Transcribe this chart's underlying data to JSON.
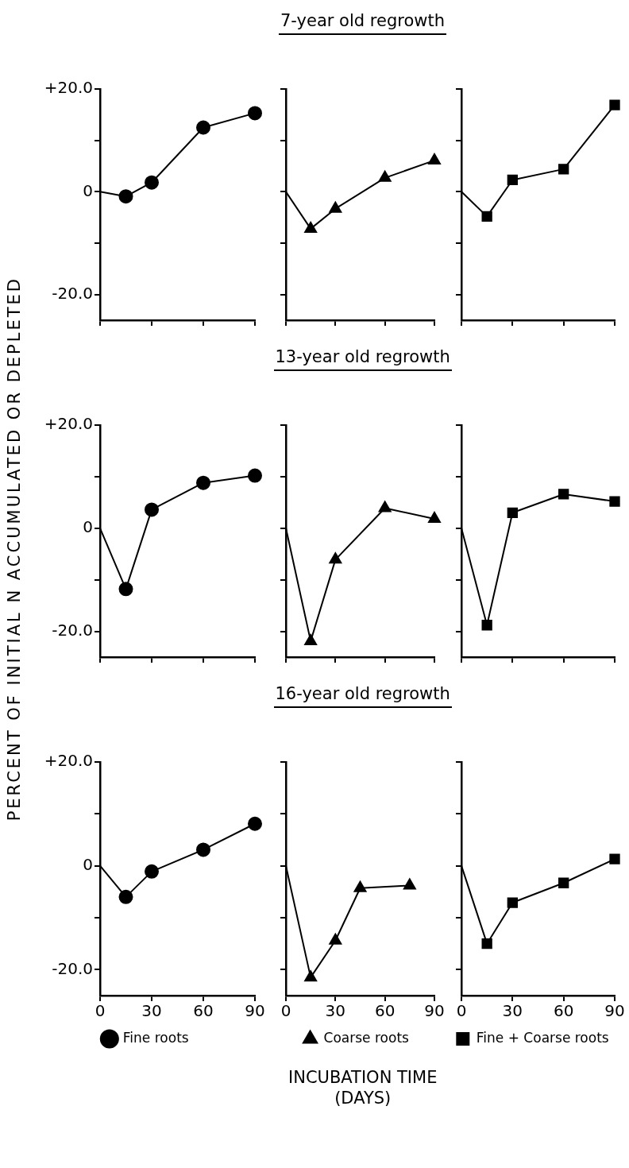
{
  "chart_data": [
    {
      "type": "line",
      "ylabel": "PERCENT OF INITIAL N ACCUMULATED OR DEPLETED",
      "x": [
        0,
        15,
        30,
        60,
        90
      ],
      "series": [
        {
          "color": "#000000",
          "values": [
            0,
            -0.9,
            1.8,
            12.5,
            15.3
          ]
        }
      ],
      "marker": "circle",
      "xlim": [
        0,
        90
      ],
      "xticks": [
        0,
        30,
        60,
        90
      ],
      "ylim": [
        -25,
        20
      ],
      "yticks": [
        {
          "value": 20,
          "label": "+20.0"
        },
        {
          "value": 10,
          "label": null
        },
        {
          "value": 0,
          "label": "0"
        },
        {
          "value": -10,
          "label": null
        },
        {
          "value": -20,
          "label": "-20.0"
        }
      ],
      "tick_labels": "y",
      "grid": false
    },
    {
      "type": "line",
      "title": "7-year old regrowth",
      "x": [
        0,
        15,
        30,
        60,
        90
      ],
      "series": [
        {
          "color": "#000000",
          "values": [
            0,
            -7.2,
            -3.3,
            2.7,
            6.1
          ]
        }
      ],
      "marker": "triangle",
      "xlim": [
        0,
        90
      ],
      "xticks": [
        0,
        30,
        60,
        90
      ],
      "ylim": [
        -25,
        20
      ],
      "yticks": [
        {
          "value": 20,
          "label": null
        },
        {
          "value": 10,
          "label": null
        },
        {
          "value": 0,
          "label": null
        },
        {
          "value": -10,
          "label": null
        },
        {
          "value": -20,
          "label": null
        }
      ],
      "tick_labels": false,
      "grid": false
    },
    {
      "type": "line",
      "x": [
        0,
        15,
        30,
        60,
        90
      ],
      "series": [
        {
          "color": "#000000",
          "values": [
            0,
            -4.8,
            2.3,
            4.4,
            16.9
          ]
        }
      ],
      "marker": "square",
      "xlim": [
        0,
        90
      ],
      "xticks": [
        0,
        30,
        60,
        90
      ],
      "ylim": [
        -25,
        20
      ],
      "yticks": [
        {
          "value": 20,
          "label": null
        },
        {
          "value": 10,
          "label": null
        },
        {
          "value": 0,
          "label": null
        },
        {
          "value": -10,
          "label": null
        },
        {
          "value": -20,
          "label": null
        }
      ],
      "tick_labels": false,
      "grid": false
    },
    {
      "type": "line",
      "x": [
        0,
        15,
        30,
        60,
        90
      ],
      "series": [
        {
          "color": "#000000",
          "values": [
            0,
            -11.8,
            3.6,
            8.8,
            10.2
          ]
        }
      ],
      "marker": "circle",
      "xlim": [
        0,
        90
      ],
      "xticks": [
        0,
        30,
        60,
        90
      ],
      "ylim": [
        -25,
        20
      ],
      "yticks": [
        {
          "value": 20,
          "label": "+20.0"
        },
        {
          "value": 10,
          "label": null
        },
        {
          "value": 0,
          "label": "0"
        },
        {
          "value": -10,
          "label": null
        },
        {
          "value": -20,
          "label": "-20.0"
        }
      ],
      "tick_labels": "y",
      "grid": false
    },
    {
      "type": "line",
      "title": "13-year old regrowth",
      "x": [
        0,
        15,
        30,
        60,
        90
      ],
      "series": [
        {
          "color": "#000000",
          "values": [
            0,
            -21.9,
            -6.1,
            3.9,
            1.8
          ]
        }
      ],
      "marker": "triangle",
      "xlim": [
        0,
        90
      ],
      "xticks": [
        0,
        30,
        60,
        90
      ],
      "ylim": [
        -25,
        20
      ],
      "yticks": [
        {
          "value": 20,
          "label": null
        },
        {
          "value": 10,
          "label": null
        },
        {
          "value": 0,
          "label": null
        },
        {
          "value": -10,
          "label": null
        },
        {
          "value": -20,
          "label": null
        }
      ],
      "tick_labels": false,
      "grid": false
    },
    {
      "type": "line",
      "x": [
        0,
        15,
        30,
        60,
        90
      ],
      "series": [
        {
          "color": "#000000",
          "values": [
            0,
            -18.8,
            3.0,
            6.6,
            5.2
          ]
        }
      ],
      "marker": "square",
      "xlim": [
        0,
        90
      ],
      "xticks": [
        0,
        30,
        60,
        90
      ],
      "ylim": [
        -25,
        20
      ],
      "yticks": [
        {
          "value": 20,
          "label": null
        },
        {
          "value": 10,
          "label": null
        },
        {
          "value": 0,
          "label": null
        },
        {
          "value": -10,
          "label": null
        },
        {
          "value": -20,
          "label": null
        }
      ],
      "tick_labels": false,
      "grid": false
    },
    {
      "type": "line",
      "x": [
        0,
        15,
        30,
        60,
        90
      ],
      "series": [
        {
          "name": "Fine roots",
          "color": "#000000",
          "values": [
            0,
            -6.0,
            -1.1,
            3.1,
            8.1
          ]
        }
      ],
      "marker": "circle",
      "legend": "bottom",
      "xlim": [
        0,
        90
      ],
      "xticks": [
        0,
        30,
        60,
        90
      ],
      "ylim": [
        -25,
        20
      ],
      "yticks": [
        {
          "value": 20,
          "label": "+20.0"
        },
        {
          "value": 10,
          "label": null
        },
        {
          "value": 0,
          "label": "0"
        },
        {
          "value": -10,
          "label": null
        },
        {
          "value": -20,
          "label": "-20.0"
        }
      ],
      "grid": false
    },
    {
      "type": "line",
      "title": "16-year old regrowth",
      "xlabel": "INCUBATION TIME\n(DAYS)",
      "x": [
        0,
        15,
        30,
        45,
        75
      ],
      "series": [
        {
          "name": "Coarse roots",
          "color": "#000000",
          "values": [
            0,
            -21.5,
            -14.4,
            -4.3,
            -3.8
          ]
        }
      ],
      "marker": "triangle",
      "legend": "bottom",
      "xlim": [
        0,
        90
      ],
      "xticks": [
        0,
        30,
        60,
        90
      ],
      "ylim": [
        -25,
        20
      ],
      "yticks": [
        {
          "value": 20,
          "label": null
        },
        {
          "value": 10,
          "label": null
        },
        {
          "value": 0,
          "label": null
        },
        {
          "value": -10,
          "label": null
        },
        {
          "value": -20,
          "label": null
        }
      ],
      "tick_labels": "x",
      "grid": false
    },
    {
      "type": "line",
      "x": [
        0,
        15,
        30,
        60,
        90
      ],
      "series": [
        {
          "name": "Fine + Coarse roots",
          "color": "#000000",
          "values": [
            0,
            -15.0,
            -7.1,
            -3.3,
            1.3
          ]
        }
      ],
      "marker": "square",
      "legend": "bottom",
      "xlim": [
        0,
        90
      ],
      "xticks": [
        0,
        30,
        60,
        90
      ],
      "ylim": [
        -25,
        20
      ],
      "yticks": [
        {
          "value": 20,
          "label": null
        },
        {
          "value": 10,
          "label": null
        },
        {
          "value": 0,
          "label": null
        },
        {
          "value": -10,
          "label": null
        },
        {
          "value": -20,
          "label": null
        }
      ],
      "tick_labels": "x",
      "grid": false
    }
  ]
}
